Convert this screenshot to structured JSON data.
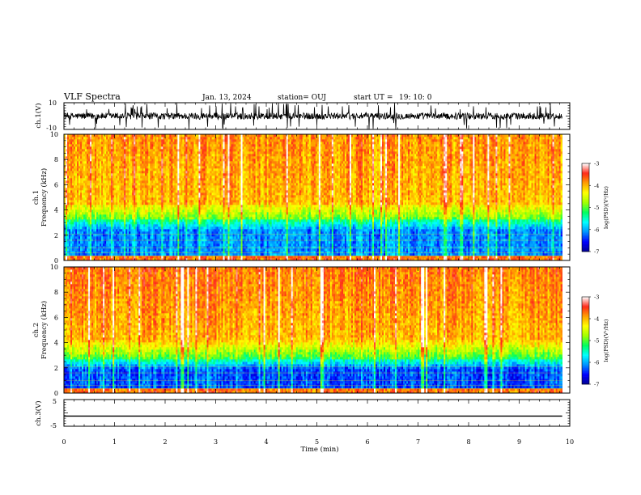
{
  "header": {
    "title": "VLF Spectra",
    "date": "Jan. 13, 2024",
    "station": "station= OUJ",
    "start_ut_label": "start  UT =",
    "start_ut_value": "19: 10: 0"
  },
  "chart_data": [
    {
      "type": "line",
      "panel": "ch1-waveform",
      "ylabel": "ch.1(V)",
      "ylim": [
        -10,
        10
      ],
      "yticks": [
        "10",
        "-10"
      ],
      "xlim": [
        0,
        10
      ],
      "baseline": 0,
      "amplitude_range": [
        -10,
        10
      ],
      "color": "#000000"
    },
    {
      "type": "heatmap",
      "panel": "ch1-spectrogram",
      "ylabel": [
        "ch.1",
        "Frequency  (kHz)"
      ],
      "ylim": [
        0,
        10
      ],
      "yticks": [
        "0",
        "2",
        "4",
        "6",
        "8",
        "10"
      ],
      "xlim": [
        0,
        10
      ],
      "data_end_min": 9.85,
      "colorbar": {
        "label": "log(PSD)(V²/Hz)",
        "range": [
          -7,
          -3
        ],
        "ticks": [
          "-3",
          "-4",
          "-5",
          "-6",
          "-7"
        ],
        "scale": [
          "#000090",
          "#0000ff",
          "#0090ff",
          "#00ffff",
          "#00ff60",
          "#a0ff00",
          "#ffff00",
          "#ffa000",
          "#ff2a1a",
          "#ffffff"
        ]
      }
    },
    {
      "type": "heatmap",
      "panel": "ch2-spectrogram",
      "ylabel": [
        "ch.2",
        "Frequency  (kHz)"
      ],
      "ylim": [
        0,
        10
      ],
      "yticks": [
        "0",
        "2",
        "4",
        "6",
        "8",
        "10"
      ],
      "xlim": [
        0,
        10
      ],
      "data_end_min": 9.85,
      "colorbar": {
        "label": "log(PSD)(V²/Hz)",
        "range": [
          -7,
          -3
        ],
        "ticks": [
          "-3",
          "-4",
          "-5",
          "-6",
          "-7"
        ],
        "scale": [
          "#000090",
          "#0000ff",
          "#0090ff",
          "#00ffff",
          "#00ff60",
          "#a0ff00",
          "#ffff00",
          "#ffa000",
          "#ff2a1a",
          "#ffffff"
        ]
      }
    },
    {
      "type": "line",
      "panel": "ch3-waveform",
      "ylabel": "ch.3(V)",
      "ylim": [
        -5,
        5
      ],
      "yticks": [
        "5",
        "-5"
      ],
      "xlim": [
        0,
        10
      ],
      "constant_value": -1.2,
      "color": "#000000"
    }
  ],
  "x_axis": {
    "label": "Time  (min)",
    "ticks": [
      "0",
      "1",
      "2",
      "3",
      "4",
      "5",
      "6",
      "7",
      "8",
      "9",
      "10"
    ]
  }
}
